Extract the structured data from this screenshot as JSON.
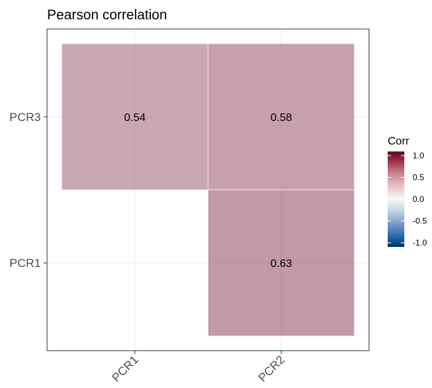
{
  "chart_data": {
    "type": "heatmap",
    "title": "Pearson correlation",
    "xlabel": "",
    "ylabel": "",
    "x_categories": [
      "PCR1",
      "PCR2"
    ],
    "y_categories": [
      "PCR1",
      "PCR3"
    ],
    "cells": [
      {
        "x": "PCR2",
        "y": "PCR1",
        "value": 0.63,
        "label": "0.63"
      },
      {
        "x": "PCR1",
        "y": "PCR3",
        "value": 0.54,
        "label": "0.54"
      },
      {
        "x": "PCR2",
        "y": "PCR3",
        "value": 0.58,
        "label": "0.58"
      }
    ],
    "grid": true,
    "legend": {
      "title": "Corr",
      "position": "right",
      "range": [
        -1.0,
        1.0
      ],
      "ticks": [
        {
          "value": 1.0,
          "label": "1.0"
        },
        {
          "value": 0.5,
          "label": "0.5"
        },
        {
          "value": 0.0,
          "label": "0.0"
        },
        {
          "value": -0.5,
          "label": "-0.5"
        },
        {
          "value": -1.0,
          "label": "-1.0"
        }
      ],
      "colors": {
        "low": "#053061",
        "mid": "#f7f7f7",
        "high": "#67001f"
      }
    }
  }
}
